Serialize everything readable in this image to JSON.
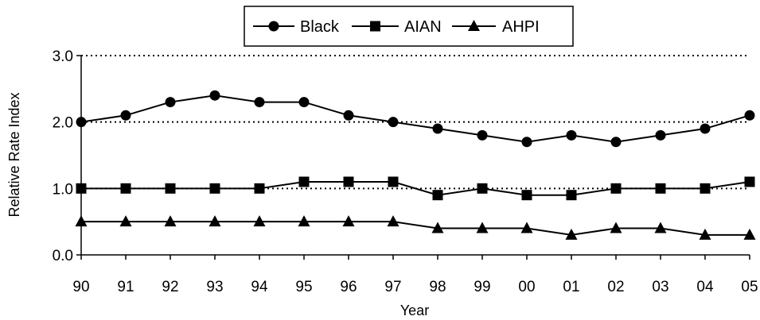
{
  "chart_data": {
    "type": "line",
    "categories": [
      "90",
      "91",
      "92",
      "93",
      "94",
      "95",
      "96",
      "97",
      "98",
      "99",
      "00",
      "01",
      "02",
      "03",
      "04",
      "05"
    ],
    "series": [
      {
        "name": "Black",
        "marker": "circle",
        "values": [
          2.0,
          2.1,
          2.3,
          2.4,
          2.3,
          2.3,
          2.1,
          2.0,
          1.9,
          1.8,
          1.7,
          1.8,
          1.7,
          1.8,
          1.9,
          2.1
        ]
      },
      {
        "name": "AIAN",
        "marker": "square",
        "values": [
          1.0,
          1.0,
          1.0,
          1.0,
          1.0,
          1.1,
          1.1,
          1.1,
          0.9,
          1.0,
          0.9,
          0.9,
          1.0,
          1.0,
          1.0,
          1.1
        ]
      },
      {
        "name": "AHPI",
        "marker": "triangle",
        "values": [
          0.5,
          0.5,
          0.5,
          0.5,
          0.5,
          0.5,
          0.5,
          0.5,
          0.4,
          0.4,
          0.4,
          0.3,
          0.4,
          0.4,
          0.3,
          0.3
        ]
      }
    ],
    "xlabel": "Year",
    "ylabel": "Relative Rate Index",
    "ylim": [
      0,
      3
    ],
    "yticks": [
      "0.0",
      "1.0",
      "2.0",
      "3.0"
    ],
    "gridlines": "dotted-horizontal",
    "legend": "top-center",
    "colors": {
      "line": "#000000",
      "marker": "#000000"
    }
  }
}
